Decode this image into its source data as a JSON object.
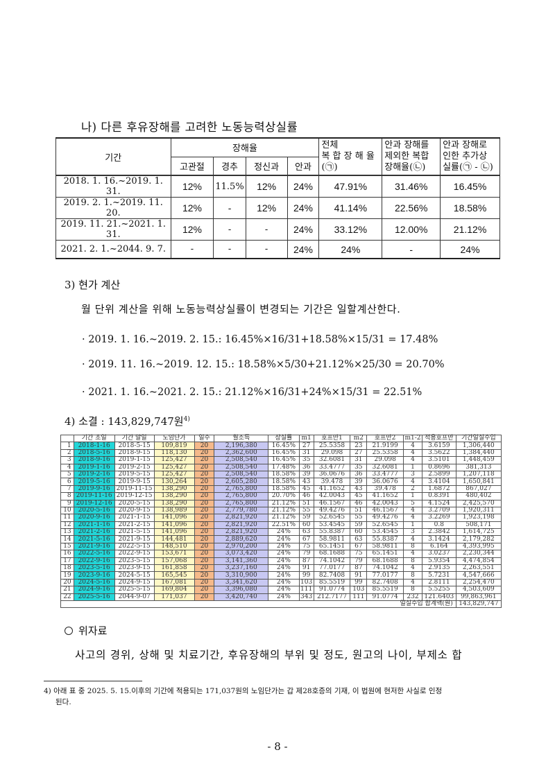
{
  "section": {
    "title": "나) 다른 후유장해를 고려한 노동능력상실률"
  },
  "table1": {
    "headers": {
      "period": "기간",
      "disability_rate": "장해율",
      "sub": [
        "고관절",
        "경추",
        "정신과",
        "안과"
      ],
      "total": "전체 복합장해율 (㉠)",
      "total_l1": "전체",
      "total_l2": "복 합 장 해 율",
      "total_l3": "(㉠)",
      "excl_l1": "안과 장해를",
      "excl_l2": "제외한 복합",
      "excl_l3": "장해율(㉡)",
      "add_l1": "안과 장해로",
      "add_l2": "인한 추가상",
      "add_l3": "실률(㉠ - ㉡)"
    },
    "rows": [
      {
        "period": "2018. 1. 16.~2019. 1. 31.",
        "hip": "12%",
        "neck": "11.5%",
        "psych": "12%",
        "eye": "24%",
        "total": "47.91%",
        "excl": "31.46%",
        "add": "16.45%"
      },
      {
        "period": "2019. 2. 1.~2019. 11. 20.",
        "hip": "12%",
        "neck": "-",
        "psych": "12%",
        "eye": "24%",
        "total": "41.14%",
        "excl": "22.56%",
        "add": "18.58%"
      },
      {
        "period": "2019. 11. 21.~2021. 1. 31.",
        "hip": "12%",
        "neck": "-",
        "psych": "-",
        "eye": "24%",
        "total": "33.12%",
        "excl": "12.00%",
        "add": "21.12%"
      },
      {
        "period": "2021. 2. 1.~2044. 9. 7.",
        "hip": "-",
        "neck": "-",
        "psych": "-",
        "eye": "24%",
        "total": "24%",
        "excl": "-",
        "add": "24%"
      }
    ]
  },
  "present_value": {
    "heading": "3) 현가 계산",
    "paragraph": "월 단위 계산을 위해 노동능력상실률이 변경되는 기간은 일할계산한다.",
    "calcs": [
      "· 2019. 1. 16.~2019. 2. 15.: 16.45%×16/31+18.58%×15/31 = 17.48%",
      "· 2019. 11. 16.~2019. 12. 15.: 18.58%×5/30+21.12%×25/30 = 20.70%",
      "· 2021. 1. 16.~2021. 2. 15.: 21.12%×16/31+24%×15/31 = 22.51%"
    ]
  },
  "conclusion": {
    "heading": "4) 소결 : 143,829,747원",
    "footnote_ref": "4)"
  },
  "table2": {
    "headers": [
      "",
      "기간 초일",
      "기간 말일",
      "노임단가",
      "일수",
      "월소득",
      "상실률",
      "m1",
      "호프만1",
      "m2",
      "호프만2",
      "m1-2",
      "적용호프만",
      "기간일실수입"
    ],
    "rows": [
      [
        "1",
        "2018-1-16",
        "2018-5-15",
        "109,819",
        "20",
        "2,196,380",
        "16.45%",
        "27",
        "25.5358",
        "23",
        "21.9199",
        "4",
        "3.6159",
        "1,306,440"
      ],
      [
        "2",
        "2018-5-16",
        "2018-9-15",
        "118,130",
        "20",
        "2,362,600",
        "16.45%",
        "31",
        "29.098",
        "27",
        "25.5358",
        "4",
        "3.5622",
        "1,384,440"
      ],
      [
        "3",
        "2018-9-16",
        "2019-1-15",
        "125,427",
        "20",
        "2,508,540",
        "16.45%",
        "35",
        "32.6081",
        "31",
        "29.098",
        "4",
        "3.5101",
        "1,448,459"
      ],
      [
        "4",
        "2019-1-16",
        "2019-2-15",
        "125,427",
        "20",
        "2,508,540",
        "17.48%",
        "36",
        "33.4777",
        "35",
        "32.6081",
        "1",
        "0.8696",
        "381,313"
      ],
      [
        "5",
        "2019-2-16",
        "2019-5-15",
        "125,427",
        "20",
        "2,508,540",
        "18.58%",
        "39",
        "36.0676",
        "36",
        "33.4777",
        "3",
        "2.5899",
        "1,207,118"
      ],
      [
        "6",
        "2019-5-16",
        "2019-9-15",
        "130,264",
        "20",
        "2,605,280",
        "18.58%",
        "43",
        "39.478",
        "39",
        "36.0676",
        "4",
        "3.4104",
        "1,650,841"
      ],
      [
        "7",
        "2019-9-16",
        "2019-11-15",
        "138,290",
        "20",
        "2,765,800",
        "18.58%",
        "45",
        "41.1652",
        "43",
        "39.478",
        "2",
        "1.6872",
        "867,027"
      ],
      [
        "8",
        "2019-11-16",
        "2019-12-15",
        "138,290",
        "20",
        "2,765,800",
        "20.70%",
        "46",
        "42.0043",
        "45",
        "41.1652",
        "1",
        "0.8391",
        "480,402"
      ],
      [
        "9",
        "2019-12-16",
        "2020-5-15",
        "138,290",
        "20",
        "2,765,800",
        "21.12%",
        "51",
        "46.1567",
        "46",
        "42.0043",
        "5",
        "4.1524",
        "2,425,570"
      ],
      [
        "10",
        "2020-5-16",
        "2020-9-15",
        "138,989",
        "20",
        "2,779,780",
        "21.12%",
        "55",
        "49.4276",
        "51",
        "46.1567",
        "4",
        "3.2709",
        "1,920,311"
      ],
      [
        "11",
        "2020-9-16",
        "2021-1-15",
        "141,096",
        "20",
        "2,821,920",
        "21.12%",
        "59",
        "52.6545",
        "55",
        "49.4276",
        "4",
        "3.2269",
        "1,923,198"
      ],
      [
        "12",
        "2021-1-16",
        "2021-2-15",
        "141,096",
        "20",
        "2,821,920",
        "22.51%",
        "60",
        "53.4545",
        "59",
        "52.6545",
        "1",
        "0.8",
        "508,171"
      ],
      [
        "13",
        "2021-2-16",
        "2021-5-15",
        "141,096",
        "20",
        "2,821,920",
        "24%",
        "63",
        "55.8387",
        "60",
        "53.4545",
        "3",
        "2.3842",
        "1,614,725"
      ],
      [
        "14",
        "2021-5-16",
        "2021-9-15",
        "144,481",
        "20",
        "2,889,620",
        "24%",
        "67",
        "58.9811",
        "63",
        "55.8387",
        "4",
        "3.1424",
        "2,179,282"
      ],
      [
        "15",
        "2021-9-16",
        "2022-5-15",
        "148,510",
        "20",
        "2,970,200",
        "24%",
        "75",
        "65.1451",
        "67",
        "58.9811",
        "8",
        "6.164",
        "4,393,995"
      ],
      [
        "16",
        "2022-5-16",
        "2022-9-15",
        "153,671",
        "20",
        "3,073,420",
        "24%",
        "79",
        "68.1688",
        "75",
        "65.1451",
        "4",
        "3.0237",
        "2,230,344"
      ],
      [
        "17",
        "2022-9-16",
        "2023-5-15",
        "157,068",
        "20",
        "3,141,360",
        "24%",
        "87",
        "74.1042",
        "79",
        "68.1688",
        "8",
        "5.9354",
        "4,474,854"
      ],
      [
        "18",
        "2023-5-16",
        "2023-9-15",
        "161,858",
        "20",
        "3,237,160",
        "24%",
        "91",
        "77.0177",
        "87",
        "74.1042",
        "4",
        "2.9135",
        "2,263,551"
      ],
      [
        "19",
        "2023-9-16",
        "2024-5-15",
        "165,545",
        "20",
        "3,310,900",
        "24%",
        "99",
        "82.7408",
        "91",
        "77.0177",
        "8",
        "5.7231",
        "4,547,666"
      ],
      [
        "20",
        "2024-5-16",
        "2024-9-15",
        "167,081",
        "20",
        "3,341,620",
        "24%",
        "103",
        "85.5519",
        "99",
        "82.7408",
        "4",
        "2.8111",
        "2,254,470"
      ],
      [
        "21",
        "2024-9-16",
        "2025-5-15",
        "169,804",
        "20",
        "3,396,080",
        "24%",
        "111",
        "91.0774",
        "103",
        "85.5519",
        "8",
        "5.5255",
        "4,503,609"
      ],
      [
        "22",
        "2025-5-16",
        "2044-9-07",
        "171,037",
        "20",
        "3,420,740",
        "24%",
        "343",
        "212.7177",
        "111",
        "91.0774",
        "232",
        "121.6403",
        "99,863,961"
      ]
    ],
    "total_label": "일실수입 합계액(원)",
    "total_value": "143,829,747",
    "colors": {
      "start_date": "#22d6d8",
      "unit_wage": "#fff8c6",
      "days": "#f5b98a",
      "monthly_income": "#c8c8f2"
    }
  },
  "consolation": {
    "heading": "위자료",
    "paragraph": "사고의 경위, 상해 및 치료기간, 후유장해의 부위 및 정도, 원고의 나이, 부제소 합"
  },
  "footnote": {
    "line1": "4) 아래 표 중 2025. 5. 15.이후의 기간에 적용되는 171,037원의 노임단가는 갑 제28호증의 기재, 이 법원에 현저한 사실로 인정",
    "line2": "된다."
  },
  "page": {
    "number": "- 8 -"
  }
}
